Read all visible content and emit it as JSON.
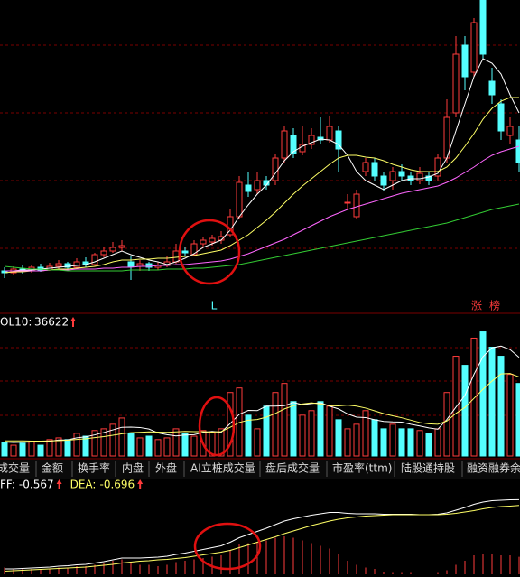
{
  "chart_data": [
    {
      "type": "candlestick",
      "up_color": "#ff3b3b",
      "down_color": "#54ffff",
      "ylim": [
        0,
        340
      ],
      "open": [
        40,
        38,
        42,
        40,
        44,
        41,
        45,
        48,
        44,
        50,
        47,
        58,
        62,
        66,
        50,
        45,
        48,
        44,
        46,
        50,
        62,
        58,
        70,
        72,
        74,
        80,
        100,
        135,
        130,
        140,
        140,
        165,
        190,
        172,
        180,
        188,
        185,
        195,
        115,
        100,
        150,
        160,
        145,
        140,
        150,
        145,
        140,
        145,
        145,
        165,
        215,
        290,
        260,
        340,
        250,
        225,
        190,
        185
      ],
      "high": [
        44,
        45,
        46,
        47,
        48,
        49,
        52,
        50,
        54,
        55,
        60,
        66,
        72,
        74,
        56,
        52,
        50,
        50,
        56,
        70,
        66,
        74,
        78,
        80,
        84,
        108,
        145,
        150,
        150,
        145,
        170,
        200,
        198,
        200,
        198,
        210,
        212,
        200,
        125,
        130,
        165,
        165,
        150,
        155,
        158,
        150,
        155,
        150,
        170,
        230,
        300,
        300,
        320,
        345,
        265,
        230,
        210,
        200
      ],
      "low": [
        32,
        35,
        37,
        38,
        39,
        40,
        42,
        40,
        42,
        44,
        45,
        55,
        60,
        62,
        30,
        40,
        40,
        41,
        44,
        48,
        56,
        56,
        66,
        68,
        70,
        78,
        98,
        122,
        125,
        130,
        135,
        160,
        165,
        168,
        175,
        180,
        182,
        150,
        108,
        98,
        145,
        140,
        128,
        130,
        140,
        135,
        136,
        135,
        140,
        160,
        210,
        240,
        255,
        275,
        225,
        185,
        180,
        150
      ],
      "close": [
        38,
        42,
        40,
        44,
        41,
        45,
        48,
        44,
        50,
        47,
        58,
        62,
        66,
        68,
        45,
        48,
        44,
        46,
        50,
        62,
        60,
        70,
        74,
        76,
        78,
        100,
        138,
        128,
        140,
        135,
        165,
        195,
        170,
        180,
        190,
        185,
        200,
        175,
        116,
        125,
        160,
        145,
        135,
        150,
        145,
        140,
        148,
        140,
        165,
        210,
        280,
        255,
        315,
        280,
        235,
        195,
        200,
        160
      ],
      "series": [
        {
          "color": "#ffffff",
          "values": [
            40,
            40,
            41,
            41,
            42,
            43,
            44,
            45,
            46,
            47,
            50,
            54,
            58,
            62,
            58,
            55,
            52,
            50,
            47,
            50,
            54,
            59,
            66,
            70,
            74,
            85,
            100,
            113,
            125,
            135,
            148,
            162,
            172,
            178,
            182,
            186,
            185,
            180,
            168,
            150,
            140,
            135,
            130,
            135,
            140,
            142,
            142,
            144,
            148,
            165,
            195,
            225,
            255,
            275,
            270,
            258,
            235,
            215
          ]
        },
        {
          "color": "#ffff66",
          "values": [
            38,
            39,
            39,
            40,
            40,
            41,
            42,
            42,
            43,
            44,
            45,
            47,
            50,
            52,
            52,
            53,
            53,
            54,
            54,
            55,
            56,
            57,
            59,
            61,
            63,
            68,
            74,
            80,
            88,
            96,
            105,
            115,
            125,
            134,
            142,
            150,
            158,
            165,
            168,
            168,
            166,
            165,
            162,
            158,
            155,
            152,
            150,
            150,
            150,
            155,
            165,
            178,
            192,
            208,
            220,
            228,
            232,
            232
          ]
        },
        {
          "color": "#ff66ff",
          "values": [
            40,
            40,
            40,
            40,
            40,
            41,
            41,
            41,
            42,
            42,
            42,
            43,
            43,
            44,
            44,
            45,
            45,
            46,
            46,
            47,
            47,
            48,
            49,
            50,
            51,
            53,
            56,
            59,
            63,
            67,
            71,
            75,
            80,
            85,
            90,
            95,
            100,
            104,
            108,
            111,
            114,
            117,
            120,
            123,
            126,
            128,
            130,
            132,
            134,
            138,
            143,
            149,
            155,
            162,
            168,
            172,
            175,
            178
          ]
        },
        {
          "color": "#33cc33",
          "values": [
            45,
            44,
            43,
            42,
            42,
            41,
            41,
            40,
            40,
            40,
            40,
            40,
            40,
            40,
            41,
            41,
            41,
            41,
            42,
            42,
            42,
            43,
            43,
            44,
            45,
            46,
            47,
            49,
            51,
            53,
            55,
            57,
            59,
            61,
            63,
            65,
            67,
            69,
            71,
            73,
            75,
            77,
            79,
            81,
            83,
            85,
            87,
            89,
            91,
            93,
            96,
            99,
            102,
            105,
            108,
            110,
            112,
            114
          ]
        }
      ],
      "annotations": [
        "L",
        "涨",
        "榜"
      ]
    },
    {
      "type": "bar",
      "ylim": [
        0,
        64000
      ],
      "values": [
        6300,
        5000,
        5900,
        6700,
        5000,
        7600,
        8400,
        7600,
        10500,
        9200,
        11800,
        12600,
        14700,
        17600,
        10500,
        8400,
        9200,
        7600,
        8400,
        12600,
        10500,
        9200,
        11800,
        10900,
        12600,
        29400,
        31500,
        18900,
        12600,
        23100,
        29400,
        33600,
        25200,
        18900,
        21000,
        25200,
        23100,
        16800,
        12600,
        14700,
        21000,
        16800,
        12600,
        14700,
        12600,
        12600,
        11800,
        10500,
        12600,
        29400,
        46200,
        42000,
        54600,
        57500,
        50400,
        46200,
        37800,
        33600
      ],
      "series": [
        {
          "color": "#ffffff",
          "values": [
            6500,
            6300,
            6400,
            6500,
            6700,
            6800,
            7400,
            7500,
            8400,
            8900,
            9800,
            10900,
            12100,
            13300,
            13400,
            13200,
            12500,
            10700,
            9900,
            9300,
            9700,
            9900,
            10900,
            11400,
            11000,
            15000,
            19300,
            21100,
            21000,
            23100,
            23100,
            23300,
            24800,
            23800,
            24300,
            24700,
            23100,
            21800,
            19500,
            18000,
            17800,
            16800,
            16000,
            15800,
            15700,
            14700,
            13900,
            13000,
            12400,
            16900,
            22600,
            28100,
            37800,
            46000,
            50100,
            50900,
            49300,
            45700
          ]
        },
        {
          "name": "OL10:",
          "color": "#ffff66",
          "values": [
            7000,
            7000,
            7000,
            6900,
            6900,
            7000,
            7100,
            7300,
            7700,
            8000,
            8500,
            9000,
            9600,
            10300,
            10800,
            11000,
            11200,
            11100,
            11000,
            11200,
            11400,
            11300,
            11300,
            11100,
            11300,
            13300,
            15500,
            16600,
            16900,
            18000,
            19700,
            21800,
            23300,
            24100,
            24600,
            24100,
            23300,
            23200,
            23600,
            23100,
            22200,
            20900,
            19600,
            18600,
            17700,
            16600,
            15500,
            14900,
            14700,
            16200,
            19700,
            22500,
            26700,
            30900,
            34700,
            38000,
            38200,
            36622
          ]
        }
      ]
    },
    {
      "type": "macd",
      "ylim": [
        -2.2,
        -0.4
      ],
      "hist_ylim": [
        0,
        1.2
      ],
      "hist_color": "#ff3b3b",
      "hist": [
        0.1,
        0.08,
        0.08,
        0.08,
        0.08,
        0.08,
        0.1,
        0.1,
        0.12,
        0.12,
        0.14,
        0.16,
        0.2,
        0.22,
        0.18,
        0.14,
        0.14,
        0.12,
        0.14,
        0.18,
        0.2,
        0.22,
        0.24,
        0.26,
        0.28,
        0.36,
        0.44,
        0.46,
        0.48,
        0.5,
        0.54,
        0.56,
        0.54,
        0.5,
        0.46,
        0.42,
        0.38,
        0.3,
        0.2,
        0.14,
        0.1,
        0.08,
        0.04,
        0.02,
        0.02,
        0.02,
        0.0,
        0.0,
        0.02,
        0.06,
        0.14,
        0.2,
        0.28,
        0.3,
        0.3,
        0.28,
        0.28,
        0.258
      ],
      "series": [
        {
          "name": "FF:",
          "color": "#ffffff",
          "values": [
            -2.1,
            -2.1,
            -2.09,
            -2.08,
            -2.07,
            -2.06,
            -2.04,
            -2.03,
            -2.01,
            -2.0,
            -1.97,
            -1.94,
            -1.9,
            -1.86,
            -1.86,
            -1.86,
            -1.85,
            -1.84,
            -1.82,
            -1.78,
            -1.75,
            -1.71,
            -1.67,
            -1.63,
            -1.59,
            -1.51,
            -1.41,
            -1.34,
            -1.27,
            -1.2,
            -1.12,
            -1.04,
            -0.99,
            -0.95,
            -0.91,
            -0.88,
            -0.85,
            -0.85,
            -0.87,
            -0.88,
            -0.88,
            -0.88,
            -0.89,
            -0.89,
            -0.89,
            -0.89,
            -0.9,
            -0.9,
            -0.89,
            -0.86,
            -0.8,
            -0.74,
            -0.67,
            -0.62,
            -0.59,
            -0.58,
            -0.57,
            -0.567
          ]
        },
        {
          "name": "DEA:",
          "color": "#ffff66",
          "values": [
            -2.15,
            -2.14,
            -2.13,
            -2.12,
            -2.11,
            -2.1,
            -2.09,
            -2.08,
            -2.07,
            -2.06,
            -2.04,
            -2.02,
            -2.0,
            -1.97,
            -1.95,
            -1.93,
            -1.92,
            -1.9,
            -1.89,
            -1.87,
            -1.85,
            -1.82,
            -1.79,
            -1.76,
            -1.73,
            -1.69,
            -1.63,
            -1.57,
            -1.51,
            -1.45,
            -1.39,
            -1.32,
            -1.26,
            -1.2,
            -1.14,
            -1.09,
            -1.04,
            -1.0,
            -0.97,
            -0.95,
            -0.93,
            -0.92,
            -0.91,
            -0.9,
            -0.9,
            -0.9,
            -0.9,
            -0.9,
            -0.9,
            -0.89,
            -0.87,
            -0.84,
            -0.81,
            -0.77,
            -0.74,
            -0.72,
            -0.71,
            -0.696
          ]
        }
      ]
    }
  ],
  "tabs": [
    "成交量",
    "金额",
    "换手率",
    "内盘",
    "外盘",
    "AI立桩成交量",
    "盘后成交量",
    "市盈率(ttm)",
    "陆股通持股",
    "融资融券余"
  ]
}
